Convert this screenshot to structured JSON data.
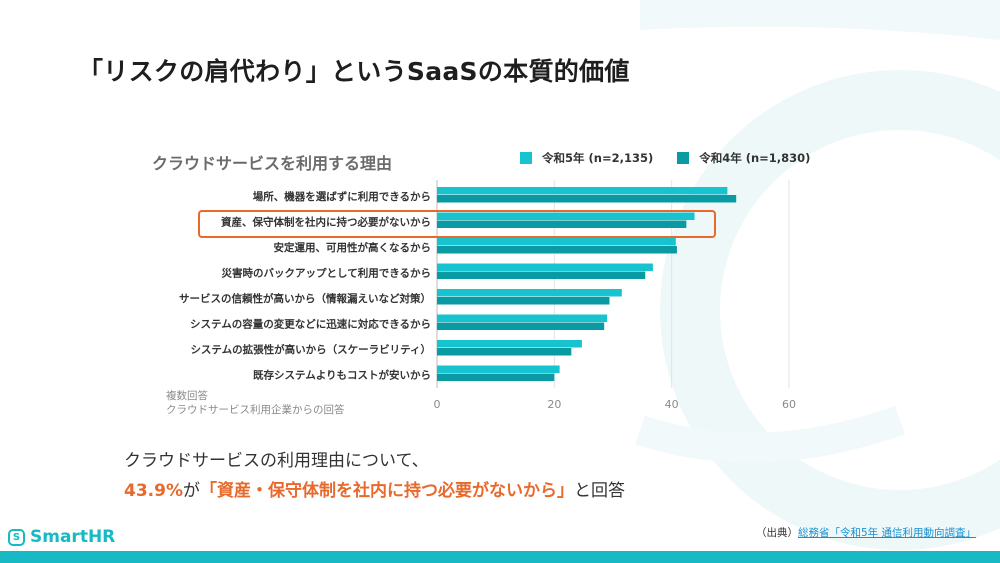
{
  "slide": {
    "title": "「リスクの肩代わり」というSaaSの本質的価値",
    "summary_line1": "クラウドサービスの利用理由について、",
    "summary_percent": "43.9%",
    "summary_ga": "が",
    "summary_quote": "「資産・保守体制を社内に持つ必要がないから」",
    "summary_tail": "と回答",
    "logo_glyph": "S",
    "logo_text": "SmartHR",
    "source_prefix": "（出典）",
    "source_link": "総務省「令和5年 通信利用動向調査」"
  },
  "colors": {
    "series_r5": "#17c3ce",
    "series_r4": "#0a9aa3",
    "highlight": "#e8692c",
    "brand": "#17b9c4"
  },
  "chart_data": {
    "type": "bar",
    "orientation": "horizontal",
    "title": "クラウドサービスを利用する理由",
    "note_line1": "複数回答",
    "note_line2": "クラウドサービス利用企業からの回答",
    "categories": [
      "場所、機器を選ばずに利用できるから",
      "資産、保守体制を社内に持つ必要がないから",
      "安定運用、可用性が高くなるから",
      "災害時のバックアップとして利用できるから",
      "サービスの信頼性が高いから（情報漏えいなど対策）",
      "システムの容量の変更などに迅速に対応できるから",
      "システムの拡張性が高いから（スケーラビリティ）",
      "既存システムよりもコストが安いから"
    ],
    "series": [
      {
        "name": "令和5年 (n=2,135)",
        "values": [
          49.5,
          43.9,
          40.7,
          36.8,
          31.5,
          29.0,
          24.7,
          20.9
        ]
      },
      {
        "name": "令和4年 (n=1,830)",
        "values": [
          51.0,
          42.5,
          40.9,
          35.5,
          29.4,
          28.5,
          22.9,
          20.0
        ]
      }
    ],
    "xlim": [
      0,
      60
    ],
    "xticks": [
      0,
      20,
      40,
      60
    ],
    "xtick_labels": [
      "0",
      "20",
      "40",
      "60"
    ],
    "highlighted_category": "資産、保守体制を社内に持つ必要がないから",
    "grid": true,
    "legend_position": "top-right"
  }
}
